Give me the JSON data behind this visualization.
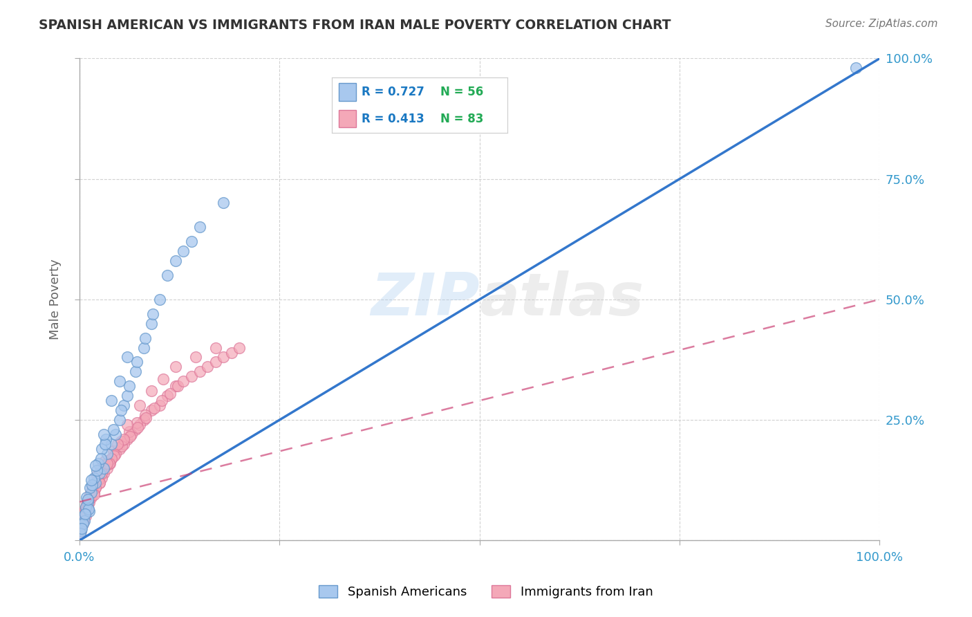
{
  "title": "SPANISH AMERICAN VS IMMIGRANTS FROM IRAN MALE POVERTY CORRELATION CHART",
  "source": "Source: ZipAtlas.com",
  "ylabel": "Male Poverty",
  "watermark_zip": "ZIP",
  "watermark_atlas": "atlas",
  "xlim": [
    0,
    100
  ],
  "ylim": [
    0,
    100
  ],
  "group1_name": "Spanish Americans",
  "group1_color": "#a8c8ee",
  "group1_edge_color": "#6699cc",
  "group1_line_color": "#3377cc",
  "group1_R": 0.727,
  "group1_N": 56,
  "group2_name": "Immigrants from Iran",
  "group2_color": "#f4a8b8",
  "group2_edge_color": "#dd7799",
  "group2_line_color": "#cc4477",
  "group2_R": 0.413,
  "group2_N": 83,
  "legend_R_color": "#1a78c2",
  "legend_N_color": "#22aa55",
  "title_color": "#333333",
  "source_color": "#777777",
  "axis_label_color": "#666666",
  "tick_color": "#3399cc",
  "grid_color": "#cccccc",
  "background_color": "#ffffff",
  "group1_line_x": [
    0,
    100
  ],
  "group1_line_y": [
    0,
    100
  ],
  "group2_line_x": [
    0,
    100
  ],
  "group2_line_y": [
    8,
    50
  ],
  "group1_scatter_x": [
    0.5,
    1.0,
    1.2,
    1.5,
    2.0,
    2.5,
    3.0,
    3.5,
    4.0,
    4.5,
    5.0,
    5.5,
    6.0,
    7.0,
    8.0,
    9.0,
    10.0,
    11.0,
    12.0,
    13.0,
    14.0,
    15.0,
    18.0,
    0.3,
    0.8,
    1.3,
    1.8,
    2.3,
    2.8,
    3.3,
    0.2,
    0.6,
    0.9,
    1.1,
    1.6,
    2.2,
    2.7,
    3.2,
    4.2,
    5.2,
    6.2,
    7.2,
    8.2,
    9.2,
    0.4,
    0.7,
    1.5,
    2.0,
    3.0,
    4.0,
    5.0,
    6.0,
    97.0,
    0.1,
    0.3,
    1.0
  ],
  "group1_scatter_y": [
    5.0,
    8.0,
    6.0,
    10.0,
    12.0,
    14.0,
    15.0,
    18.0,
    20.0,
    22.0,
    25.0,
    28.0,
    30.0,
    35.0,
    40.0,
    45.0,
    50.0,
    55.0,
    58.0,
    60.0,
    62.0,
    65.0,
    70.0,
    3.0,
    7.0,
    11.0,
    13.0,
    16.0,
    19.0,
    21.0,
    2.0,
    4.0,
    9.0,
    6.5,
    11.5,
    14.5,
    17.0,
    20.0,
    23.0,
    27.0,
    32.0,
    37.0,
    42.0,
    47.0,
    3.5,
    5.5,
    12.5,
    15.5,
    22.0,
    29.0,
    33.0,
    38.0,
    98.0,
    1.5,
    2.5,
    8.5
  ],
  "group2_scatter_x": [
    0.3,
    0.8,
    1.2,
    1.8,
    2.5,
    3.0,
    3.5,
    4.0,
    5.0,
    6.0,
    7.0,
    8.0,
    9.0,
    10.0,
    11.0,
    12.0,
    0.5,
    1.0,
    1.5,
    2.0,
    2.8,
    3.8,
    4.5,
    5.5,
    6.5,
    7.5,
    0.2,
    0.6,
    0.9,
    1.3,
    1.7,
    2.2,
    2.7,
    3.2,
    4.2,
    5.2,
    6.2,
    7.2,
    8.2,
    0.4,
    0.7,
    1.1,
    1.6,
    2.3,
    3.3,
    4.3,
    5.3,
    6.3,
    7.3,
    8.3,
    9.3,
    10.3,
    11.3,
    12.3,
    13.0,
    14.0,
    15.0,
    16.0,
    17.0,
    18.0,
    19.0,
    20.0,
    0.1,
    0.9,
    2.5,
    4.0,
    3.7,
    5.5,
    0.3,
    1.0,
    2.0,
    3.5,
    4.8,
    6.0,
    7.5,
    9.0,
    10.5,
    12.0,
    14.5,
    17.0,
    0.8,
    1.8,
    2.8
  ],
  "group2_scatter_y": [
    3.0,
    6.0,
    8.0,
    10.0,
    12.0,
    14.0,
    15.0,
    17.0,
    19.0,
    21.0,
    23.0,
    25.0,
    27.0,
    28.0,
    30.0,
    32.0,
    4.0,
    7.0,
    9.0,
    11.0,
    13.0,
    16.0,
    18.0,
    20.0,
    22.0,
    24.0,
    2.0,
    5.0,
    7.5,
    9.5,
    11.5,
    13.5,
    15.0,
    16.5,
    18.5,
    20.5,
    22.5,
    24.5,
    26.0,
    3.5,
    6.5,
    8.5,
    10.5,
    12.5,
    15.5,
    17.5,
    19.5,
    21.5,
    23.5,
    25.5,
    27.5,
    29.0,
    30.5,
    32.0,
    33.0,
    34.0,
    35.0,
    36.0,
    37.0,
    38.0,
    39.0,
    40.0,
    1.5,
    6.5,
    12.0,
    17.0,
    16.0,
    21.0,
    3.0,
    7.0,
    11.0,
    16.0,
    20.0,
    24.0,
    28.0,
    31.0,
    33.5,
    36.0,
    38.0,
    40.0,
    5.0,
    9.5,
    14.0
  ]
}
